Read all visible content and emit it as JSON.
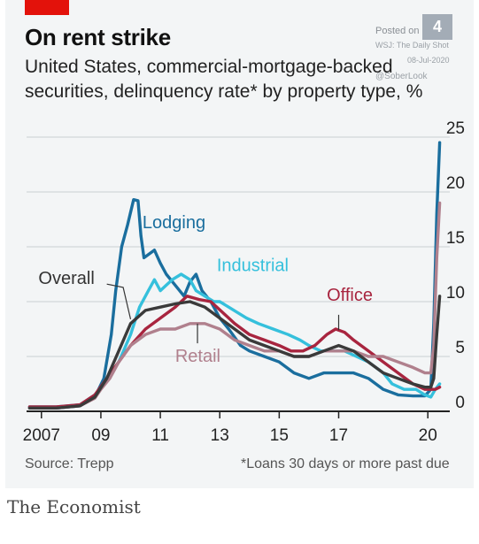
{
  "header": {
    "title": "On rent strike",
    "subtitle": "United States, commercial-mortgage-backed securities, delinquency rate* by property type, %"
  },
  "watermark": {
    "posted": "Posted on",
    "source": "WSJ: The Daily Shot",
    "date": "08-Jul-2020",
    "handle": "@SoberLook",
    "badge": "4"
  },
  "footer": {
    "source": "Source: Trepp",
    "footnote": "*Loans 30 days or more past due",
    "brand": "The Economist"
  },
  "colors": {
    "lodging": "#1a6e9e",
    "industrial": "#35c0dc",
    "office": "#a8253f",
    "retail": "#b0808d",
    "overall": "#3a3a3a",
    "grid": "#c8ced3",
    "background": "#f3f5f6",
    "brand_red": "#e3120b"
  },
  "chart_data": {
    "type": "line",
    "title": "On rent strike",
    "subtitle": "United States, commercial-mortgage-backed securities, delinquency rate* by property type, %",
    "ylabel": "%",
    "xlim": [
      2006.5,
      2020.5
    ],
    "ylim": [
      0,
      25
    ],
    "yticks": [
      0,
      5,
      10,
      15,
      20,
      25
    ],
    "xticks": [
      {
        "value": 2007,
        "label": "2007"
      },
      {
        "value": 2009,
        "label": "09"
      },
      {
        "value": 2011,
        "label": "11"
      },
      {
        "value": 2013,
        "label": "13"
      },
      {
        "value": 2015,
        "label": "15"
      },
      {
        "value": 2017,
        "label": "17"
      },
      {
        "value": 2020,
        "label": "20"
      }
    ],
    "grid": true,
    "y_axis_position": "right",
    "series": [
      {
        "name": "Lodging",
        "key": "lodging",
        "points": [
          [
            2006.6,
            0.3
          ],
          [
            2007.5,
            0.3
          ],
          [
            2008.3,
            0.5
          ],
          [
            2008.8,
            1.3
          ],
          [
            2009.1,
            3
          ],
          [
            2009.35,
            7
          ],
          [
            2009.5,
            11
          ],
          [
            2009.7,
            15
          ],
          [
            2009.9,
            17
          ],
          [
            2010.1,
            19.3
          ],
          [
            2010.25,
            19.2
          ],
          [
            2010.35,
            16
          ],
          [
            2010.45,
            14
          ],
          [
            2010.6,
            14.3
          ],
          [
            2010.8,
            14.7
          ],
          [
            2011.0,
            13.5
          ],
          [
            2011.2,
            12.5
          ],
          [
            2011.5,
            11.5
          ],
          [
            2011.8,
            10.5
          ],
          [
            2012.0,
            11.8
          ],
          [
            2012.2,
            12.5
          ],
          [
            2012.4,
            11
          ],
          [
            2012.7,
            10
          ],
          [
            2013.0,
            8.5
          ],
          [
            2013.3,
            7.5
          ],
          [
            2013.7,
            6
          ],
          [
            2014.0,
            5.5
          ],
          [
            2014.5,
            5
          ],
          [
            2015.0,
            4.5
          ],
          [
            2015.5,
            3.5
          ],
          [
            2016.0,
            3
          ],
          [
            2016.5,
            3.5
          ],
          [
            2017.0,
            3.5
          ],
          [
            2017.5,
            3.5
          ],
          [
            2018.0,
            3
          ],
          [
            2018.5,
            2
          ],
          [
            2019.0,
            1.5
          ],
          [
            2019.5,
            1.4
          ],
          [
            2019.9,
            1.4
          ],
          [
            2020.1,
            2
          ],
          [
            2020.2,
            8
          ],
          [
            2020.3,
            18
          ],
          [
            2020.4,
            24.5
          ]
        ]
      },
      {
        "name": "Industrial",
        "key": "industrial",
        "points": [
          [
            2006.6,
            0.4
          ],
          [
            2007.5,
            0.4
          ],
          [
            2008.3,
            0.6
          ],
          [
            2008.8,
            1.5
          ],
          [
            2009.2,
            2.8
          ],
          [
            2009.6,
            4.5
          ],
          [
            2010.0,
            7
          ],
          [
            2010.3,
            9.5
          ],
          [
            2010.6,
            11
          ],
          [
            2010.8,
            12
          ],
          [
            2011.0,
            11
          ],
          [
            2011.2,
            11.5
          ],
          [
            2011.4,
            12
          ],
          [
            2011.7,
            12.5
          ],
          [
            2012.0,
            12
          ],
          [
            2012.2,
            11
          ],
          [
            2012.5,
            10.5
          ],
          [
            2012.8,
            10
          ],
          [
            2013.0,
            10
          ],
          [
            2013.3,
            9.5
          ],
          [
            2013.6,
            9
          ],
          [
            2013.9,
            8.5
          ],
          [
            2014.3,
            8
          ],
          [
            2014.8,
            7.5
          ],
          [
            2015.3,
            7
          ],
          [
            2015.7,
            6.5
          ],
          [
            2016.0,
            6
          ],
          [
            2016.4,
            5.5
          ],
          [
            2016.8,
            5.5
          ],
          [
            2017.2,
            5.5
          ],
          [
            2017.6,
            5
          ],
          [
            2018.0,
            4.5
          ],
          [
            2018.5,
            3.5
          ],
          [
            2018.8,
            2.5
          ],
          [
            2019.2,
            2
          ],
          [
            2019.6,
            2
          ],
          [
            2019.9,
            1.5
          ],
          [
            2020.1,
            1.3
          ],
          [
            2020.25,
            2
          ],
          [
            2020.4,
            2.5
          ]
        ]
      },
      {
        "name": "Office",
        "key": "office",
        "points": [
          [
            2006.6,
            0.4
          ],
          [
            2007.5,
            0.4
          ],
          [
            2008.3,
            0.6
          ],
          [
            2008.8,
            1.5
          ],
          [
            2009.2,
            3
          ],
          [
            2009.6,
            4.5
          ],
          [
            2010.0,
            6
          ],
          [
            2010.5,
            7.5
          ],
          [
            2011.0,
            8.5
          ],
          [
            2011.5,
            9.5
          ],
          [
            2011.9,
            10.5
          ],
          [
            2012.3,
            10.2
          ],
          [
            2012.7,
            10
          ],
          [
            2013.1,
            9
          ],
          [
            2013.5,
            8
          ],
          [
            2014.0,
            7
          ],
          [
            2014.5,
            6.5
          ],
          [
            2015.0,
            6
          ],
          [
            2015.4,
            5.5
          ],
          [
            2015.8,
            5.5
          ],
          [
            2016.2,
            6
          ],
          [
            2016.6,
            7
          ],
          [
            2016.9,
            7.5
          ],
          [
            2017.2,
            7.2
          ],
          [
            2017.5,
            6.5
          ],
          [
            2018.0,
            5.5
          ],
          [
            2018.5,
            4.5
          ],
          [
            2019.0,
            3.5
          ],
          [
            2019.5,
            2.5
          ],
          [
            2019.9,
            2
          ],
          [
            2020.1,
            2
          ],
          [
            2020.25,
            2
          ],
          [
            2020.4,
            2.2
          ]
        ]
      },
      {
        "name": "Retail",
        "key": "retail",
        "points": [
          [
            2006.6,
            0.3
          ],
          [
            2007.5,
            0.3
          ],
          [
            2008.3,
            0.5
          ],
          [
            2008.8,
            1.2
          ],
          [
            2009.0,
            2
          ],
          [
            2009.3,
            3
          ],
          [
            2009.6,
            4.5
          ],
          [
            2010.0,
            6
          ],
          [
            2010.5,
            7
          ],
          [
            2011.0,
            7.5
          ],
          [
            2011.5,
            7.5
          ],
          [
            2012.0,
            8
          ],
          [
            2012.5,
            8
          ],
          [
            2013.0,
            7.5
          ],
          [
            2013.5,
            6.5
          ],
          [
            2014.0,
            6
          ],
          [
            2014.5,
            5.5
          ],
          [
            2015.0,
            5.5
          ],
          [
            2015.5,
            5
          ],
          [
            2016.0,
            5
          ],
          [
            2016.5,
            5.5
          ],
          [
            2017.0,
            5.5
          ],
          [
            2017.5,
            5.5
          ],
          [
            2018.0,
            5
          ],
          [
            2018.5,
            5
          ],
          [
            2019.0,
            4.5
          ],
          [
            2019.5,
            4
          ],
          [
            2019.9,
            3.5
          ],
          [
            2020.1,
            3.5
          ],
          [
            2020.2,
            6
          ],
          [
            2020.3,
            14
          ],
          [
            2020.4,
            19
          ]
        ]
      },
      {
        "name": "Overall",
        "key": "overall",
        "points": [
          [
            2006.6,
            0.3
          ],
          [
            2007.5,
            0.3
          ],
          [
            2008.3,
            0.5
          ],
          [
            2008.8,
            1.3
          ],
          [
            2009.2,
            3
          ],
          [
            2009.6,
            5.5
          ],
          [
            2010.0,
            8
          ],
          [
            2010.5,
            9.2
          ],
          [
            2011.0,
            9.5
          ],
          [
            2011.5,
            9.8
          ],
          [
            2012.0,
            10
          ],
          [
            2012.5,
            9.5
          ],
          [
            2013.0,
            8.5
          ],
          [
            2013.5,
            7.5
          ],
          [
            2014.0,
            6.5
          ],
          [
            2014.5,
            6
          ],
          [
            2015.0,
            5.5
          ],
          [
            2015.5,
            5
          ],
          [
            2016.0,
            5
          ],
          [
            2016.5,
            5.5
          ],
          [
            2017.0,
            6
          ],
          [
            2017.5,
            5.5
          ],
          [
            2018.0,
            4.5
          ],
          [
            2018.5,
            3.5
          ],
          [
            2019.0,
            3
          ],
          [
            2019.5,
            2.5
          ],
          [
            2019.9,
            2.2
          ],
          [
            2020.1,
            2.2
          ],
          [
            2020.2,
            3
          ],
          [
            2020.3,
            7
          ],
          [
            2020.4,
            10.5
          ]
        ]
      }
    ],
    "annotations": [
      {
        "text": "Lodging",
        "key": "lodging",
        "x": 2010.4,
        "y": 16.7
      },
      {
        "text": "Industrial",
        "key": "industrial",
        "x": 2012.9,
        "y": 12.8
      },
      {
        "text": "Office",
        "key": "office",
        "x": 2016.6,
        "y": 10.1
      },
      {
        "text": "Retail",
        "key": "retail",
        "x": 2011.5,
        "y": 4.5
      },
      {
        "text": "Overall",
        "key": "overall",
        "x": 2006.9,
        "y": 11.6
      }
    ]
  }
}
